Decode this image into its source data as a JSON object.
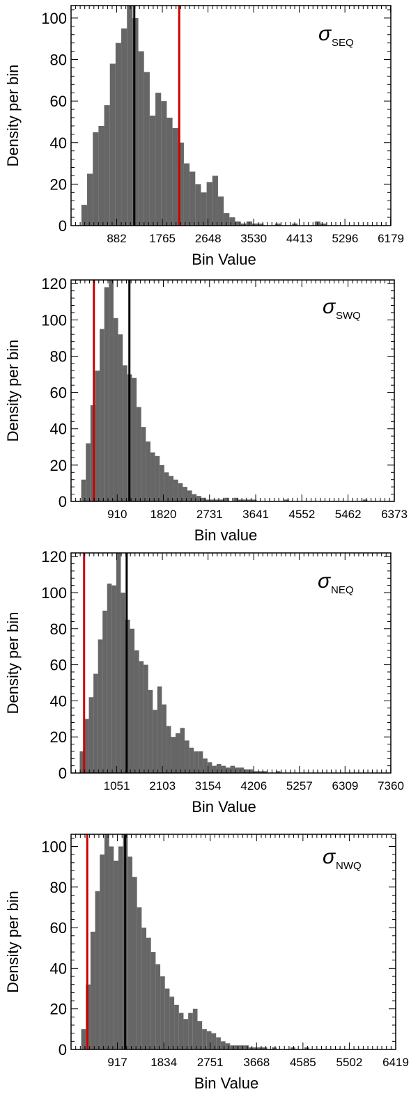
{
  "chart_data": [
    {
      "type": "bar",
      "annotation": {
        "sigma": "σ",
        "sub": "SEQ"
      },
      "xlabel": "Bin Value",
      "ylabel": "Density per bin",
      "xlim": [
        0,
        6179
      ],
      "ylim": [
        0,
        106
      ],
      "xticks": [
        "882",
        "1765",
        "2648",
        "3530",
        "4413",
        "5296",
        "6179"
      ],
      "xtick_values": [
        882,
        1765,
        2648,
        3530,
        4413,
        5296,
        6179
      ],
      "yticks": [
        0,
        20,
        40,
        60,
        80,
        100
      ],
      "bin_width": 110,
      "bins_start": 200,
      "values": [
        10,
        25,
        45,
        48,
        58,
        78,
        88,
        95,
        106,
        100,
        84,
        74,
        53,
        64,
        60,
        52,
        47,
        40,
        30,
        26,
        20,
        16,
        21,
        24,
        14,
        6,
        4,
        2,
        1,
        2,
        1,
        1,
        0,
        0,
        1,
        0,
        0,
        1,
        0,
        0,
        0,
        2,
        1,
        0,
        0,
        0,
        0,
        0,
        0,
        0,
        0,
        0,
        0,
        0,
        0,
        0,
        0
      ],
      "vlines": [
        {
          "value": 1222,
          "color": "#000000"
        },
        {
          "value": 2090,
          "color": "#cc0000"
        }
      ],
      "grid": false,
      "hist_color": "#666666"
    },
    {
      "type": "bar",
      "annotation": {
        "sigma": "σ",
        "sub": "SWQ"
      },
      "xlabel": "Bin value",
      "ylabel": "Density per bin",
      "xlim": [
        0,
        6373
      ],
      "ylim": [
        0,
        122
      ],
      "xticks": [
        "910",
        "1820",
        "2731",
        "3641",
        "4552",
        "5462",
        "6373"
      ],
      "xtick_values": [
        910,
        1820,
        2731,
        3641,
        4552,
        5462,
        6373
      ],
      "yticks": [
        0,
        20,
        40,
        60,
        80,
        100,
        120
      ],
      "bin_width": 91,
      "bins_start": 200,
      "values": [
        12,
        32,
        53,
        72,
        95,
        118,
        122,
        101,
        92,
        75,
        70,
        68,
        52,
        41,
        33,
        27,
        25,
        20,
        16,
        14,
        12,
        10,
        8,
        6,
        4,
        3,
        2,
        1,
        1,
        1,
        1,
        2,
        0,
        2,
        1,
        1,
        1,
        1,
        0,
        0,
        0,
        0,
        0,
        0,
        1,
        0,
        0,
        0,
        0,
        0,
        0,
        0,
        0,
        0,
        0,
        0,
        0,
        0,
        0,
        0,
        0,
        1,
        0,
        0,
        0
      ],
      "vlines": [
        {
          "value": 1150,
          "color": "#000000"
        },
        {
          "value": 450,
          "color": "#cc0000"
        }
      ],
      "grid": false,
      "hist_color": "#666666"
    },
    {
      "type": "bar",
      "annotation": {
        "sigma": "σ",
        "sub": "NEQ"
      },
      "xlabel": "Bin Value",
      "ylabel": "Density per bin",
      "xlim": [
        0,
        7360
      ],
      "ylim": [
        0,
        122
      ],
      "xticks": [
        "1051",
        "2103",
        "3154",
        "4206",
        "5257",
        "6309",
        "7360"
      ],
      "xtick_values": [
        1051,
        2103,
        3154,
        4206,
        5257,
        6309,
        7360
      ],
      "yticks": [
        0,
        20,
        40,
        60,
        80,
        100,
        120
      ],
      "bin_width": 105,
      "bins_start": 200,
      "values": [
        12,
        30,
        42,
        55,
        74,
        90,
        105,
        104,
        122,
        100,
        85,
        80,
        68,
        62,
        60,
        46,
        35,
        48,
        38,
        26,
        20,
        22,
        25,
        18,
        14,
        12,
        12,
        8,
        6,
        4,
        5,
        4,
        3,
        4,
        3,
        3,
        2,
        2,
        1,
        1,
        1,
        0,
        0,
        1,
        0,
        0,
        0,
        0,
        0,
        0,
        0,
        0,
        0,
        0,
        0,
        0,
        0,
        0,
        0,
        0,
        0,
        0,
        0,
        0,
        0,
        0,
        0,
        0,
        0
      ],
      "vlines": [
        {
          "value": 1280,
          "color": "#000000"
        },
        {
          "value": 300,
          "color": "#cc0000"
        }
      ],
      "grid": false,
      "hist_color": "#666666"
    },
    {
      "type": "bar",
      "annotation": {
        "sigma": "σ",
        "sub": "NWQ"
      },
      "xlabel": "Bin Value",
      "ylabel": "Density per bin",
      "xlim": [
        0,
        6419
      ],
      "ylim": [
        0,
        106
      ],
      "xticks": [
        "917",
        "1834",
        "2751",
        "3668",
        "4585",
        "5502",
        "6419"
      ],
      "xtick_values": [
        917,
        1834,
        2751,
        3668,
        4585,
        5502,
        6419
      ],
      "yticks": [
        0,
        20,
        40,
        60,
        80,
        100
      ],
      "bin_width": 92,
      "bins_start": 200,
      "values": [
        10,
        32,
        58,
        78,
        96,
        106,
        100,
        93,
        100,
        106,
        95,
        85,
        70,
        60,
        55,
        48,
        42,
        36,
        30,
        26,
        22,
        18,
        15,
        18,
        20,
        14,
        10,
        9,
        8,
        6,
        4,
        3,
        2,
        2,
        2,
        2,
        1,
        1,
        1,
        1,
        0,
        1,
        0,
        0,
        0,
        1,
        0,
        0,
        1,
        0,
        0,
        0,
        0,
        0,
        0,
        0,
        0,
        0,
        0,
        0,
        0,
        0,
        0,
        0,
        0,
        0,
        0,
        0,
        0,
        0
      ],
      "vlines": [
        {
          "value": 1070,
          "color": "#000000"
        },
        {
          "value": 320,
          "color": "#cc0000"
        }
      ],
      "grid": false,
      "hist_color": "#666666"
    }
  ]
}
